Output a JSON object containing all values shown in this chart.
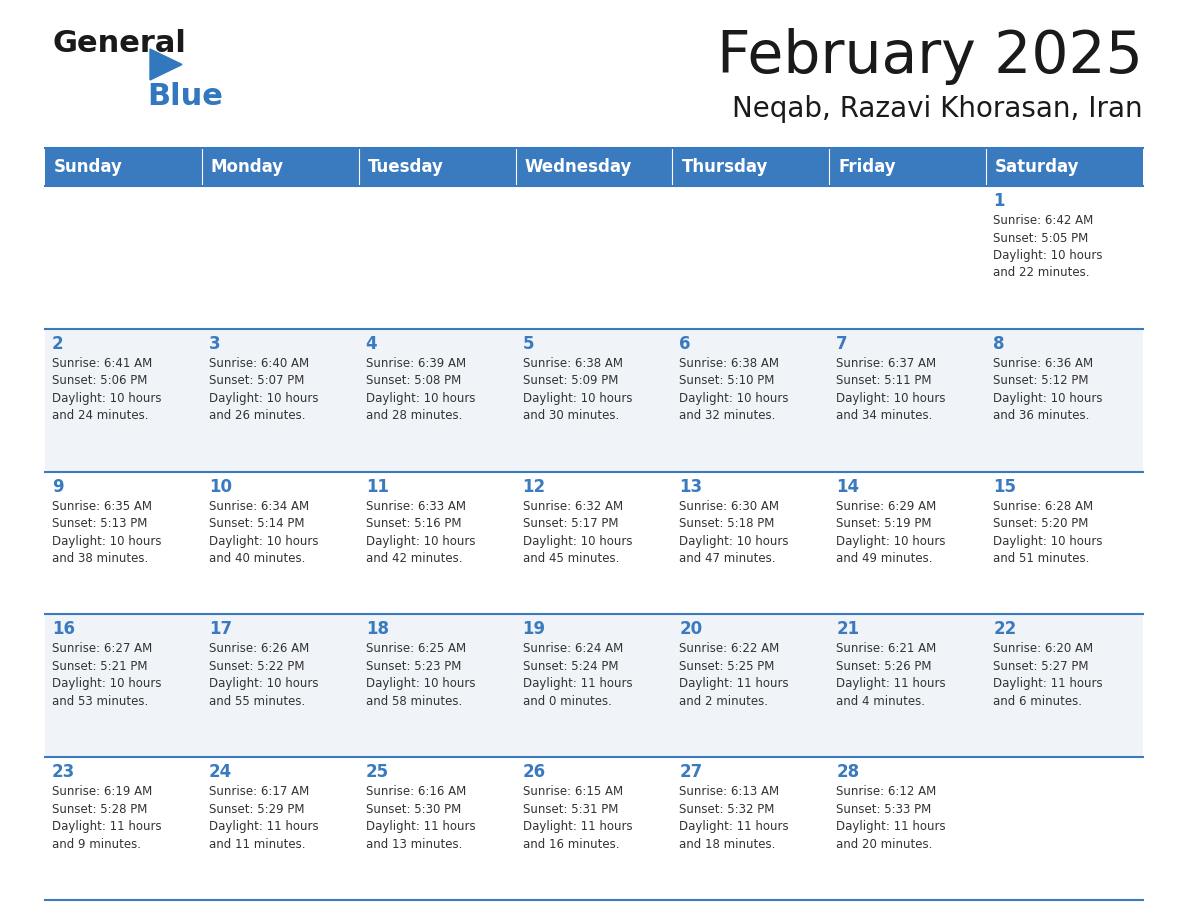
{
  "title": "February 2025",
  "subtitle": "Neqab, Razavi Khorasan, Iran",
  "header_color": "#3a7abf",
  "header_text_color": "#ffffff",
  "weekdays": [
    "Sunday",
    "Monday",
    "Tuesday",
    "Wednesday",
    "Thursday",
    "Friday",
    "Saturday"
  ],
  "bg_color": "#ffffff",
  "row_alt_color": "#f0f4f8",
  "line_color": "#3a7abf",
  "day_number_color": "#3a7abf",
  "cell_text_color": "#333333",
  "title_color": "#1a1a1a",
  "logo_general_color": "#1a1a1a",
  "logo_blue_color": "#3178be",
  "calendar_data": [
    [
      {
        "day": null,
        "info": ""
      },
      {
        "day": null,
        "info": ""
      },
      {
        "day": null,
        "info": ""
      },
      {
        "day": null,
        "info": ""
      },
      {
        "day": null,
        "info": ""
      },
      {
        "day": null,
        "info": ""
      },
      {
        "day": 1,
        "info": "Sunrise: 6:42 AM\nSunset: 5:05 PM\nDaylight: 10 hours\nand 22 minutes."
      }
    ],
    [
      {
        "day": 2,
        "info": "Sunrise: 6:41 AM\nSunset: 5:06 PM\nDaylight: 10 hours\nand 24 minutes."
      },
      {
        "day": 3,
        "info": "Sunrise: 6:40 AM\nSunset: 5:07 PM\nDaylight: 10 hours\nand 26 minutes."
      },
      {
        "day": 4,
        "info": "Sunrise: 6:39 AM\nSunset: 5:08 PM\nDaylight: 10 hours\nand 28 minutes."
      },
      {
        "day": 5,
        "info": "Sunrise: 6:38 AM\nSunset: 5:09 PM\nDaylight: 10 hours\nand 30 minutes."
      },
      {
        "day": 6,
        "info": "Sunrise: 6:38 AM\nSunset: 5:10 PM\nDaylight: 10 hours\nand 32 minutes."
      },
      {
        "day": 7,
        "info": "Sunrise: 6:37 AM\nSunset: 5:11 PM\nDaylight: 10 hours\nand 34 minutes."
      },
      {
        "day": 8,
        "info": "Sunrise: 6:36 AM\nSunset: 5:12 PM\nDaylight: 10 hours\nand 36 minutes."
      }
    ],
    [
      {
        "day": 9,
        "info": "Sunrise: 6:35 AM\nSunset: 5:13 PM\nDaylight: 10 hours\nand 38 minutes."
      },
      {
        "day": 10,
        "info": "Sunrise: 6:34 AM\nSunset: 5:14 PM\nDaylight: 10 hours\nand 40 minutes."
      },
      {
        "day": 11,
        "info": "Sunrise: 6:33 AM\nSunset: 5:16 PM\nDaylight: 10 hours\nand 42 minutes."
      },
      {
        "day": 12,
        "info": "Sunrise: 6:32 AM\nSunset: 5:17 PM\nDaylight: 10 hours\nand 45 minutes."
      },
      {
        "day": 13,
        "info": "Sunrise: 6:30 AM\nSunset: 5:18 PM\nDaylight: 10 hours\nand 47 minutes."
      },
      {
        "day": 14,
        "info": "Sunrise: 6:29 AM\nSunset: 5:19 PM\nDaylight: 10 hours\nand 49 minutes."
      },
      {
        "day": 15,
        "info": "Sunrise: 6:28 AM\nSunset: 5:20 PM\nDaylight: 10 hours\nand 51 minutes."
      }
    ],
    [
      {
        "day": 16,
        "info": "Sunrise: 6:27 AM\nSunset: 5:21 PM\nDaylight: 10 hours\nand 53 minutes."
      },
      {
        "day": 17,
        "info": "Sunrise: 6:26 AM\nSunset: 5:22 PM\nDaylight: 10 hours\nand 55 minutes."
      },
      {
        "day": 18,
        "info": "Sunrise: 6:25 AM\nSunset: 5:23 PM\nDaylight: 10 hours\nand 58 minutes."
      },
      {
        "day": 19,
        "info": "Sunrise: 6:24 AM\nSunset: 5:24 PM\nDaylight: 11 hours\nand 0 minutes."
      },
      {
        "day": 20,
        "info": "Sunrise: 6:22 AM\nSunset: 5:25 PM\nDaylight: 11 hours\nand 2 minutes."
      },
      {
        "day": 21,
        "info": "Sunrise: 6:21 AM\nSunset: 5:26 PM\nDaylight: 11 hours\nand 4 minutes."
      },
      {
        "day": 22,
        "info": "Sunrise: 6:20 AM\nSunset: 5:27 PM\nDaylight: 11 hours\nand 6 minutes."
      }
    ],
    [
      {
        "day": 23,
        "info": "Sunrise: 6:19 AM\nSunset: 5:28 PM\nDaylight: 11 hours\nand 9 minutes."
      },
      {
        "day": 24,
        "info": "Sunrise: 6:17 AM\nSunset: 5:29 PM\nDaylight: 11 hours\nand 11 minutes."
      },
      {
        "day": 25,
        "info": "Sunrise: 6:16 AM\nSunset: 5:30 PM\nDaylight: 11 hours\nand 13 minutes."
      },
      {
        "day": 26,
        "info": "Sunrise: 6:15 AM\nSunset: 5:31 PM\nDaylight: 11 hours\nand 16 minutes."
      },
      {
        "day": 27,
        "info": "Sunrise: 6:13 AM\nSunset: 5:32 PM\nDaylight: 11 hours\nand 18 minutes."
      },
      {
        "day": 28,
        "info": "Sunrise: 6:12 AM\nSunset: 5:33 PM\nDaylight: 11 hours\nand 20 minutes."
      },
      {
        "day": null,
        "info": ""
      }
    ]
  ]
}
